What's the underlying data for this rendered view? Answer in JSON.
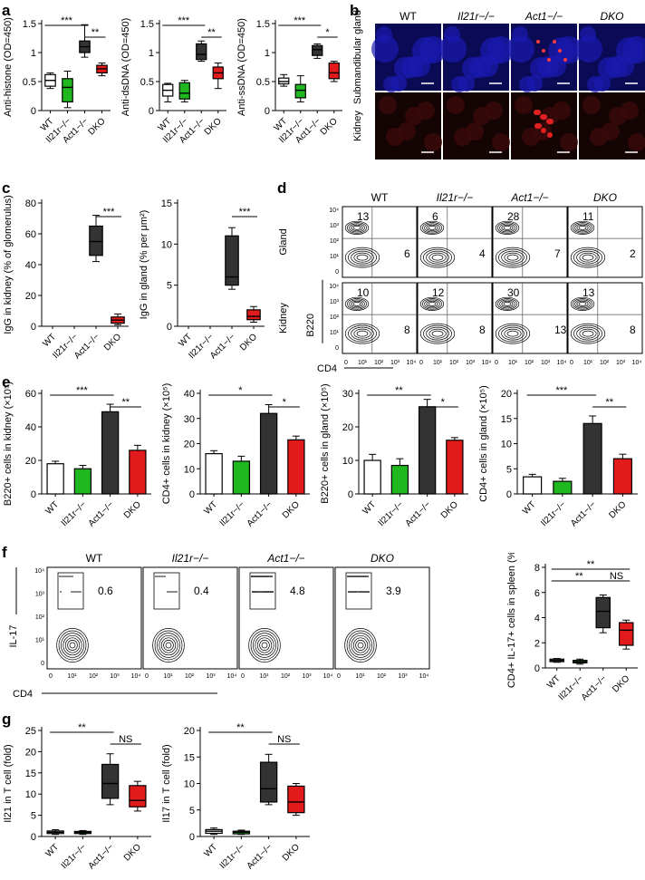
{
  "panel_labels": [
    "a",
    "b",
    "c",
    "d",
    "e",
    "f",
    "g"
  ],
  "genotypes": [
    "WT",
    "Il21r−/−",
    "Act1−/−",
    "DKO"
  ],
  "colors": {
    "WT": "#ffffff",
    "Il21r": "#1fb81f",
    "Act1": "#333333",
    "DKO": "#e31a1c"
  },
  "chart_data": [
    {
      "id": "a1",
      "type": "box",
      "ylabel": "Anti-histone (OD=450)",
      "yticks": [
        0,
        0.5,
        1.0,
        1.5
      ],
      "ylim": [
        0,
        1.5
      ],
      "categories": [
        "WT",
        "Il21r−/−",
        "Act1−/−",
        "DKO"
      ],
      "boxes": [
        [
          0.38,
          0.42,
          0.52,
          0.62,
          0.65
        ],
        [
          0.05,
          0.15,
          0.4,
          0.55,
          0.68
        ],
        [
          0.92,
          1.0,
          1.1,
          1.2,
          1.48
        ],
        [
          0.6,
          0.65,
          0.72,
          0.78,
          0.82
        ]
      ],
      "sig": [
        {
          "from": 0,
          "to": 2,
          "label": "***"
        },
        {
          "from": 2,
          "to": 3,
          "label": "**"
        }
      ]
    },
    {
      "id": "a2",
      "type": "box",
      "ylabel": "Anti-dsDNA (OD=450)",
      "yticks": [
        0,
        0.5,
        1.0,
        1.5
      ],
      "ylim": [
        0,
        1.5
      ],
      "categories": [
        "WT",
        "Il21r−/−",
        "Act1−/−",
        "DKO"
      ],
      "boxes": [
        [
          0.15,
          0.25,
          0.35,
          0.45,
          0.47
        ],
        [
          0.15,
          0.2,
          0.3,
          0.48,
          0.52
        ],
        [
          0.85,
          0.88,
          0.97,
          1.15,
          1.2
        ],
        [
          0.38,
          0.55,
          0.65,
          0.75,
          0.82
        ]
      ],
      "sig": [
        {
          "from": 0,
          "to": 2,
          "label": "***"
        },
        {
          "from": 2,
          "to": 3,
          "label": "**"
        }
      ]
    },
    {
      "id": "a3",
      "type": "box",
      "ylabel": "Anti-ssDNA (OD=450)",
      "yticks": [
        0,
        0.5,
        1.0,
        1.5
      ],
      "ylim": [
        0,
        1.5
      ],
      "categories": [
        "WT",
        "Il21r−/−",
        "Act1−/−",
        "DKO"
      ],
      "boxes": [
        [
          0.42,
          0.46,
          0.5,
          0.56,
          0.62
        ],
        [
          0.15,
          0.22,
          0.35,
          0.45,
          0.6
        ],
        [
          0.9,
          0.95,
          1.05,
          1.12,
          1.15
        ],
        [
          0.5,
          0.55,
          0.65,
          0.82,
          0.85
        ]
      ],
      "sig": [
        {
          "from": 0,
          "to": 2,
          "label": "***"
        },
        {
          "from": 2,
          "to": 3,
          "label": "*"
        }
      ]
    },
    {
      "id": "c1",
      "type": "box",
      "ylabel": "IgG in kidney (% of glomerulus)",
      "yticks": [
        0,
        20,
        40,
        60,
        80
      ],
      "ylim": [
        0,
        80
      ],
      "categories": [
        "WT",
        "Il21r−/−",
        "Act1−/−",
        "DKO"
      ],
      "boxes": [
        null,
        null,
        [
          42,
          46,
          55,
          65,
          72
        ],
        [
          1,
          2,
          4,
          6,
          8
        ]
      ],
      "sig": [
        {
          "from": 2,
          "to": 3,
          "label": "***"
        }
      ]
    },
    {
      "id": "c2",
      "type": "box",
      "ylabel": "IgG in gland (% per μm²)",
      "yticks": [
        0,
        5,
        10,
        15
      ],
      "ylim": [
        0,
        15
      ],
      "categories": [
        "WT",
        "Il21r−/−",
        "Act1−/−",
        "DKO"
      ],
      "boxes": [
        null,
        null,
        [
          4.5,
          5,
          6,
          11,
          12
        ],
        [
          0.5,
          0.8,
          1.2,
          2,
          2.4
        ]
      ],
      "sig": [
        {
          "from": 2,
          "to": 3,
          "label": "***"
        }
      ]
    },
    {
      "id": "e1",
      "type": "bar",
      "ylabel": "B220+ cells in kidney (×10⁵)",
      "yticks": [
        0,
        20,
        40,
        60
      ],
      "ylim": [
        0,
        60
      ],
      "categories": [
        "WT",
        "Il21r−/−",
        "Act1−/−",
        "DKO"
      ],
      "values": [
        18,
        15,
        49,
        26
      ],
      "errors": [
        1.5,
        2,
        4.5,
        3
      ],
      "sig": [
        {
          "from": 0,
          "to": 2,
          "label": "***"
        },
        {
          "from": 2,
          "to": 3,
          "label": "**"
        }
      ]
    },
    {
      "id": "e2",
      "type": "bar",
      "ylabel": "CD4+ cells in kidney (×10⁵)",
      "yticks": [
        0,
        10,
        20,
        30,
        40
      ],
      "ylim": [
        0,
        40
      ],
      "categories": [
        "WT",
        "Il21r−/−",
        "Act1−/−",
        "DKO"
      ],
      "values": [
        16,
        13,
        32,
        21.5
      ],
      "errors": [
        1.2,
        2,
        3.5,
        1.5
      ],
      "sig": [
        {
          "from": 0,
          "to": 2,
          "label": "*"
        },
        {
          "from": 2,
          "to": 3,
          "label": "*"
        }
      ]
    },
    {
      "id": "e3",
      "type": "bar",
      "ylabel": "B220+ cells in gland (×10⁵)",
      "yticks": [
        0,
        10,
        20,
        30
      ],
      "ylim": [
        0,
        30
      ],
      "categories": [
        "WT",
        "Il21r−/−",
        "Act1−/−",
        "DKO"
      ],
      "values": [
        10,
        8.5,
        26,
        16
      ],
      "errors": [
        1.8,
        2,
        2.2,
        0.8
      ],
      "sig": [
        {
          "from": 0,
          "to": 2,
          "label": "**"
        },
        {
          "from": 2,
          "to": 3,
          "label": "*"
        }
      ]
    },
    {
      "id": "e4",
      "type": "bar",
      "ylabel": "CD4+ cells in gland (×10⁵)",
      "yticks": [
        0,
        5,
        10,
        15,
        20
      ],
      "ylim": [
        0,
        20
      ],
      "categories": [
        "WT",
        "Il21r−/−",
        "Act1−/−",
        "DKO"
      ],
      "values": [
        3.4,
        2.5,
        14,
        7
      ],
      "errors": [
        0.5,
        0.6,
        1.5,
        0.9
      ],
      "sig": [
        {
          "from": 0,
          "to": 2,
          "label": "***"
        },
        {
          "from": 2,
          "to": 3,
          "label": "**"
        }
      ]
    },
    {
      "id": "f5",
      "type": "box",
      "ylabel": "CD4+ IL-17+ cells in spleen (%)",
      "yticks": [
        0,
        2,
        4,
        6,
        8
      ],
      "ylim": [
        0,
        8
      ],
      "categories": [
        "WT",
        "Il21r−/−",
        "Act1−/−",
        "DKO"
      ],
      "boxes": [
        [
          0.45,
          0.5,
          0.6,
          0.7,
          0.75
        ],
        [
          0.3,
          0.4,
          0.5,
          0.6,
          0.7
        ],
        [
          2.8,
          3.2,
          4.5,
          5.6,
          5.8
        ],
        [
          1.5,
          1.8,
          3.0,
          3.6,
          3.8
        ]
      ],
      "sig": [
        {
          "from": 0,
          "to": 3,
          "label": "**",
          "row": 0
        },
        {
          "from": 0,
          "to": 2,
          "label": "**",
          "row": 1
        },
        {
          "from": 2,
          "to": 3,
          "label": "NS",
          "row": 1
        }
      ]
    },
    {
      "id": "g1",
      "type": "box",
      "ylabel": "Il21 in T cell (fold)",
      "yticks": [
        0,
        5,
        10,
        15,
        20,
        25
      ],
      "ylim": [
        0,
        25
      ],
      "categories": [
        "WT",
        "Il21r−/−",
        "Act1−/−",
        "DKO"
      ],
      "boxes": [
        [
          0.5,
          0.7,
          1,
          1.3,
          1.6
        ],
        [
          0.5,
          0.7,
          1,
          1.2,
          1.4
        ],
        [
          7.5,
          9,
          12.5,
          17,
          19.5
        ],
        [
          6,
          7,
          8.5,
          12,
          13
        ]
      ],
      "sig": [
        {
          "from": 0,
          "to": 2,
          "label": "**"
        },
        {
          "from": 2,
          "to": 3,
          "label": "NS"
        }
      ]
    },
    {
      "id": "g2",
      "type": "box",
      "ylabel": "Il17 in T cell (fold)",
      "yticks": [
        0,
        5,
        10,
        15,
        20
      ],
      "ylim": [
        0,
        20
      ],
      "categories": [
        "WT",
        "Il21r−/−",
        "Act1−/−",
        "DKO"
      ],
      "boxes": [
        [
          0.4,
          0.6,
          1,
          1.3,
          1.6
        ],
        [
          0.4,
          0.5,
          0.8,
          1,
          1.2
        ],
        [
          6,
          6.5,
          9,
          14,
          15.5
        ],
        [
          4,
          4.5,
          6.5,
          9.5,
          10
        ]
      ],
      "sig": [
        {
          "from": 0,
          "to": 2,
          "label": "**"
        },
        {
          "from": 2,
          "to": 3,
          "label": "NS"
        }
      ]
    }
  ],
  "panel_b": {
    "columns": [
      "WT",
      "Il21r−/−",
      "Act1−/−",
      "DKO"
    ],
    "rows": [
      "Submandibular gland",
      "Kidney"
    ]
  },
  "panel_d": {
    "columns": [
      "WT",
      "Il21r−/−",
      "Act1−/−",
      "DKO"
    ],
    "rows": [
      "Gland",
      "Kidney"
    ],
    "values_upper": [
      [
        "13",
        "6"
      ],
      [
        "6",
        "4"
      ],
      [
        "28",
        "7"
      ],
      [
        "11",
        "2"
      ]
    ],
    "values_lower": [
      [
        "10",
        "8"
      ],
      [
        "12",
        "8"
      ],
      [
        "30",
        "13"
      ],
      [
        "13",
        "8"
      ]
    ],
    "xaxis": "CD4",
    "yaxis": "B220",
    "ticks": [
      "0",
      "10¹",
      "10²",
      "10³",
      "10⁴"
    ]
  },
  "panel_f_flow": {
    "columns": [
      "WT",
      "Il21r−/−",
      "Act1−/−",
      "DKO"
    ],
    "values": [
      "0.6",
      "0.4",
      "4.8",
      "3.9"
    ],
    "xaxis": "CD4",
    "yaxis": "IL-17",
    "ticks": [
      "0",
      "10¹",
      "10²",
      "10³",
      "10⁴"
    ]
  }
}
